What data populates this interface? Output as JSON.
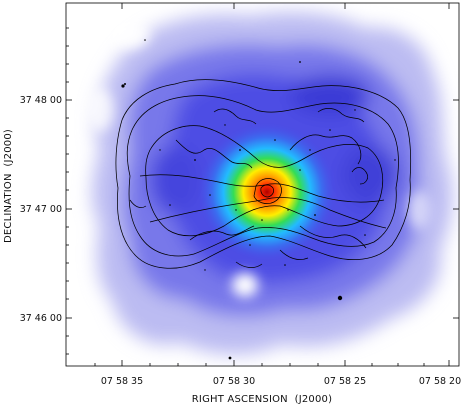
{
  "figure": {
    "xlabel": "RIGHT ASCENSION  (J2000)",
    "ylabel": "DECLINATION  (J2000)",
    "x_ticks": [
      "07 58 35",
      "07 58 30",
      "07 58 25",
      "07 58 20"
    ],
    "y_ticks": [
      "37 48 00",
      "37 47 00",
      "37 46 00"
    ],
    "image_content": "x-ray-emission-color-map-with-radio-contours",
    "colors": {
      "background": "#ffffff",
      "core_hot": "#d40000",
      "core_yellow": "#ffee00",
      "core_green": "#22dd66",
      "core_cyan": "#22bbff",
      "halo_blue": "#5050e8",
      "outer_lilac": "#b8b8f2",
      "contour": "#000000"
    }
  }
}
